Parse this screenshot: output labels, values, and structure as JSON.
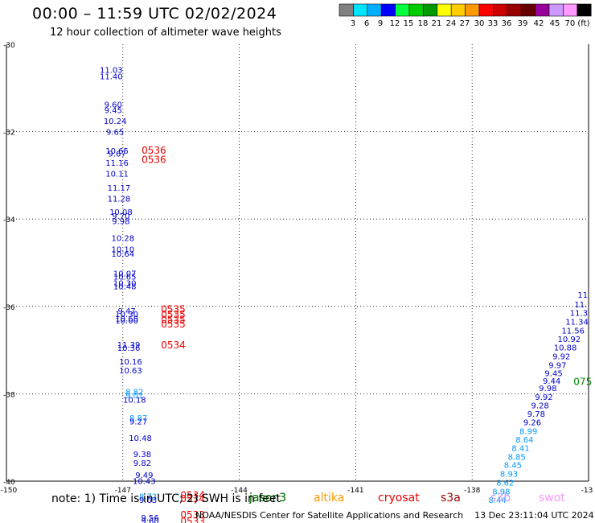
{
  "header": {
    "title": "00:00 – 11:59 UTC 02/02/2024",
    "subtitle": "12 hour collection of altimeter wave heights"
  },
  "colorbar": {
    "colors": [
      "#808080",
      "#00e5ff",
      "#00b0ff",
      "#0000ff",
      "#00ff3c",
      "#00cc00",
      "#009900",
      "#ffff00",
      "#ffcc00",
      "#ff9900",
      "#ff0000",
      "#cc0000",
      "#990000",
      "#660000",
      "#990099",
      "#cc99ff",
      "#ff99ff",
      "#000000"
    ],
    "labels": [
      "3",
      "6",
      "9",
      "12",
      "15",
      "18",
      "21",
      "24",
      "27",
      "30",
      "33",
      "36",
      "39",
      "42",
      "45",
      "70 (ft)"
    ]
  },
  "chart_data": {
    "type": "scatter",
    "xlim": [
      -150,
      -135
    ],
    "ylim": [
      -40,
      -30
    ],
    "grid": true,
    "x_ticks": [
      "-150",
      "-147",
      "-144",
      "-141",
      "-138",
      "-13"
    ],
    "y_ticks": [
      "-30",
      "-32",
      "-34",
      "-36",
      "-38",
      "-40"
    ],
    "series": [
      {
        "points": [
          {
            "lon": -147.3,
            "lat": -30.65,
            "label": "11.03",
            "color": "#0000cc"
          },
          {
            "lon": -147.3,
            "lat": -30.8,
            "label": "11.40",
            "color": "#0000cc"
          },
          {
            "lon": -147.25,
            "lat": -31.45,
            "label": "9.60",
            "color": "#0000cc"
          },
          {
            "lon": -147.25,
            "lat": -31.57,
            "label": "9.45",
            "color": "#0000cc"
          },
          {
            "lon": -147.2,
            "lat": -31.82,
            "label": "10.24",
            "color": "#0000cc"
          },
          {
            "lon": -147.2,
            "lat": -32.07,
            "label": "9.65",
            "color": "#0000cc"
          },
          {
            "lon": -147.15,
            "lat": -32.5,
            "label": "10.65",
            "color": "#0000cc"
          },
          {
            "lon": -147.15,
            "lat": -32.57,
            "label": "9.67",
            "color": "#0000cc"
          },
          {
            "lon": -147.15,
            "lat": -32.78,
            "label": "11.16",
            "color": "#0000cc"
          },
          {
            "lon": -147.15,
            "lat": -33.03,
            "label": "10.11",
            "color": "#0000cc"
          },
          {
            "lon": -147.1,
            "lat": -33.35,
            "label": "11.17",
            "color": "#0000cc"
          },
          {
            "lon": -147.1,
            "lat": -33.6,
            "label": "11.28",
            "color": "#0000cc"
          },
          {
            "lon": -147.05,
            "lat": -33.9,
            "label": "10.08",
            "color": "#0000cc"
          },
          {
            "lon": -147.05,
            "lat": -34.0,
            "label": "9.70",
            "color": "#0000cc"
          },
          {
            "lon": -147.05,
            "lat": -34.12,
            "label": "9.98",
            "color": "#0000cc"
          },
          {
            "lon": -147.0,
            "lat": -34.5,
            "label": "10.28",
            "color": "#0000cc"
          },
          {
            "lon": -147.0,
            "lat": -34.76,
            "label": "10.10",
            "color": "#0000cc"
          },
          {
            "lon": -147.0,
            "lat": -34.86,
            "label": "10.64",
            "color": "#0000cc"
          },
          {
            "lon": -146.95,
            "lat": -35.31,
            "label": "10.07",
            "color": "#0000cc"
          },
          {
            "lon": -146.95,
            "lat": -35.39,
            "label": "10.65",
            "color": "#0000cc"
          },
          {
            "lon": -146.95,
            "lat": -35.53,
            "label": "10.30",
            "color": "#0000cc"
          },
          {
            "lon": -146.95,
            "lat": -35.61,
            "label": "10.48",
            "color": "#0000cc"
          },
          {
            "lon": -146.9,
            "lat": -36.17,
            "label": "9.47",
            "color": "#0000cc"
          },
          {
            "lon": -146.9,
            "lat": -36.24,
            "label": "10.30",
            "color": "#0000cc"
          },
          {
            "lon": -146.9,
            "lat": -36.34,
            "label": "10.68",
            "color": "#0000cc"
          },
          {
            "lon": -146.9,
            "lat": -36.39,
            "label": "10.00",
            "color": "#0000cc"
          },
          {
            "lon": -146.85,
            "lat": -36.94,
            "label": "11.39",
            "color": "#0000cc"
          },
          {
            "lon": -146.85,
            "lat": -37.02,
            "label": "10.36",
            "color": "#0000cc"
          },
          {
            "lon": -146.8,
            "lat": -37.33,
            "label": "10.16",
            "color": "#0000cc"
          },
          {
            "lon": -146.8,
            "lat": -37.53,
            "label": "10.63",
            "color": "#0000cc"
          },
          {
            "lon": -146.7,
            "lat": -38.02,
            "label": "8.82",
            "color": "#0099ff"
          },
          {
            "lon": -146.7,
            "lat": -38.1,
            "label": "9.01",
            "color": "#0099ff"
          },
          {
            "lon": -146.7,
            "lat": -38.2,
            "label": "10.18",
            "color": "#0000cc"
          },
          {
            "lon": -146.6,
            "lat": -38.62,
            "label": "8.87",
            "color": "#0099ff"
          },
          {
            "lon": -146.6,
            "lat": -38.7,
            "label": "9.27",
            "color": "#0000cc"
          },
          {
            "lon": -146.55,
            "lat": -39.08,
            "label": "10.48",
            "color": "#0000cc"
          },
          {
            "lon": -146.5,
            "lat": -39.45,
            "label": "9.38",
            "color": "#0000cc"
          },
          {
            "lon": -146.5,
            "lat": -39.65,
            "label": "9.82",
            "color": "#0000cc"
          },
          {
            "lon": -146.45,
            "lat": -39.93,
            "label": "9.49",
            "color": "#0000cc"
          },
          {
            "lon": -146.45,
            "lat": -40.06,
            "label": "10.43",
            "color": "#0000cc"
          },
          {
            "lon": -146.35,
            "lat": -40.41,
            "label": "8.73",
            "color": "#0099ff"
          },
          {
            "lon": -146.35,
            "lat": -40.5,
            "label": "9.03",
            "color": "#0000cc"
          },
          {
            "lon": -146.3,
            "lat": -40.9,
            "label": "9.56",
            "color": "#0000cc"
          },
          {
            "lon": -146.3,
            "lat": -40.98,
            "label": "9.60",
            "color": "#0000cc"
          },
          {
            "lon": -135.15,
            "lat": -35.8,
            "label": "11",
            "color": "#0000cc"
          },
          {
            "lon": -135.2,
            "lat": -36.02,
            "label": "11.",
            "color": "#0000cc"
          },
          {
            "lon": -135.25,
            "lat": -36.22,
            "label": "11.3",
            "color": "#0000cc"
          },
          {
            "lon": -135.3,
            "lat": -36.42,
            "label": "11.34",
            "color": "#0000cc"
          },
          {
            "lon": -135.4,
            "lat": -36.62,
            "label": "11.56",
            "color": "#0000cc"
          },
          {
            "lon": -135.5,
            "lat": -36.81,
            "label": "10.92",
            "color": "#0000cc"
          },
          {
            "lon": -135.6,
            "lat": -37.01,
            "label": "10.88",
            "color": "#0000cc"
          },
          {
            "lon": -135.7,
            "lat": -37.21,
            "label": "9.92",
            "color": "#0000cc"
          },
          {
            "lon": -135.8,
            "lat": -37.41,
            "label": "9.97",
            "color": "#0000cc"
          },
          {
            "lon": -135.9,
            "lat": -37.6,
            "label": "9.45",
            "color": "#0000cc"
          },
          {
            "lon": -135.95,
            "lat": -37.77,
            "label": "9.44",
            "color": "#0000cc"
          },
          {
            "lon": -136.05,
            "lat": -37.94,
            "label": "9.98",
            "color": "#0000cc"
          },
          {
            "lon": -136.15,
            "lat": -38.14,
            "label": "9.92",
            "color": "#0000cc"
          },
          {
            "lon": -136.25,
            "lat": -38.33,
            "label": "9.28",
            "color": "#0000cc"
          },
          {
            "lon": -136.35,
            "lat": -38.53,
            "label": "9.78",
            "color": "#0000cc"
          },
          {
            "lon": -136.45,
            "lat": -38.72,
            "label": "9.26",
            "color": "#0000cc"
          },
          {
            "lon": -136.55,
            "lat": -38.92,
            "label": "8.99",
            "color": "#0099ff"
          },
          {
            "lon": -136.65,
            "lat": -39.12,
            "label": "8.64",
            "color": "#0099ff"
          },
          {
            "lon": -136.75,
            "lat": -39.31,
            "label": "8.41",
            "color": "#0099ff"
          },
          {
            "lon": -136.85,
            "lat": -39.51,
            "label": "8.85",
            "color": "#0099ff"
          },
          {
            "lon": -136.95,
            "lat": -39.7,
            "label": "8.45",
            "color": "#0099ff"
          },
          {
            "lon": -137.05,
            "lat": -39.9,
            "label": "8.93",
            "color": "#0099ff"
          },
          {
            "lon": -137.15,
            "lat": -40.1,
            "label": "8.62",
            "color": "#0099ff"
          },
          {
            "lon": -137.25,
            "lat": -40.3,
            "label": "8.98",
            "color": "#0099ff"
          },
          {
            "lon": -137.35,
            "lat": -40.5,
            "label": "8.44",
            "color": "#0099ff"
          }
        ]
      }
    ],
    "annotations": [
      {
        "lon": -146.2,
        "lat": -32.5,
        "text": "0536",
        "color": "#ee0000"
      },
      {
        "lon": -146.2,
        "lat": -32.72,
        "text": "0536",
        "color": "#ee0000"
      },
      {
        "lon": -145.7,
        "lat": -36.14,
        "text": "0535",
        "color": "#ee0000"
      },
      {
        "lon": -145.7,
        "lat": -36.26,
        "text": "0535",
        "color": "#ee0000"
      },
      {
        "lon": -145.7,
        "lat": -36.38,
        "text": "0535",
        "color": "#ee0000"
      },
      {
        "lon": -145.7,
        "lat": -36.48,
        "text": "0535",
        "color": "#ee0000"
      },
      {
        "lon": -145.7,
        "lat": -36.96,
        "text": "0534",
        "color": "#ee0000"
      },
      {
        "lon": -145.2,
        "lat": -40.4,
        "text": "0534",
        "color": "#ee0000"
      },
      {
        "lon": -145.2,
        "lat": -40.48,
        "text": "0534",
        "color": "#ee0000"
      },
      {
        "lon": -145.2,
        "lat": -40.85,
        "text": "0533",
        "color": "#ee0000"
      },
      {
        "lon": -145.2,
        "lat": -40.99,
        "text": "0533",
        "color": "#ee0000"
      },
      {
        "lon": -135.15,
        "lat": -37.8,
        "text": "075",
        "color": "#008800"
      }
    ]
  },
  "satellites": [
    {
      "name": "jason3",
      "color": "#000000"
    },
    {
      "name": "jason3",
      "color": "#008800"
    },
    {
      "name": "altika",
      "color": "#ff9900"
    },
    {
      "name": "cryosat",
      "color": "#ee0000"
    },
    {
      "name": "s3a",
      "color": "#990000"
    },
    {
      "name": "s3b",
      "color": "#cc99ff"
    },
    {
      "name": "swot",
      "color": "#ff99ff"
    }
  ],
  "note": "note: 1) Time is in UTC; 2) SWH is in feet",
  "footer": {
    "credit": "NOAA/NESDIS Center for Satellite Applications and Research",
    "timestamp": "13 Dec 23:11:04 UTC 2024"
  }
}
